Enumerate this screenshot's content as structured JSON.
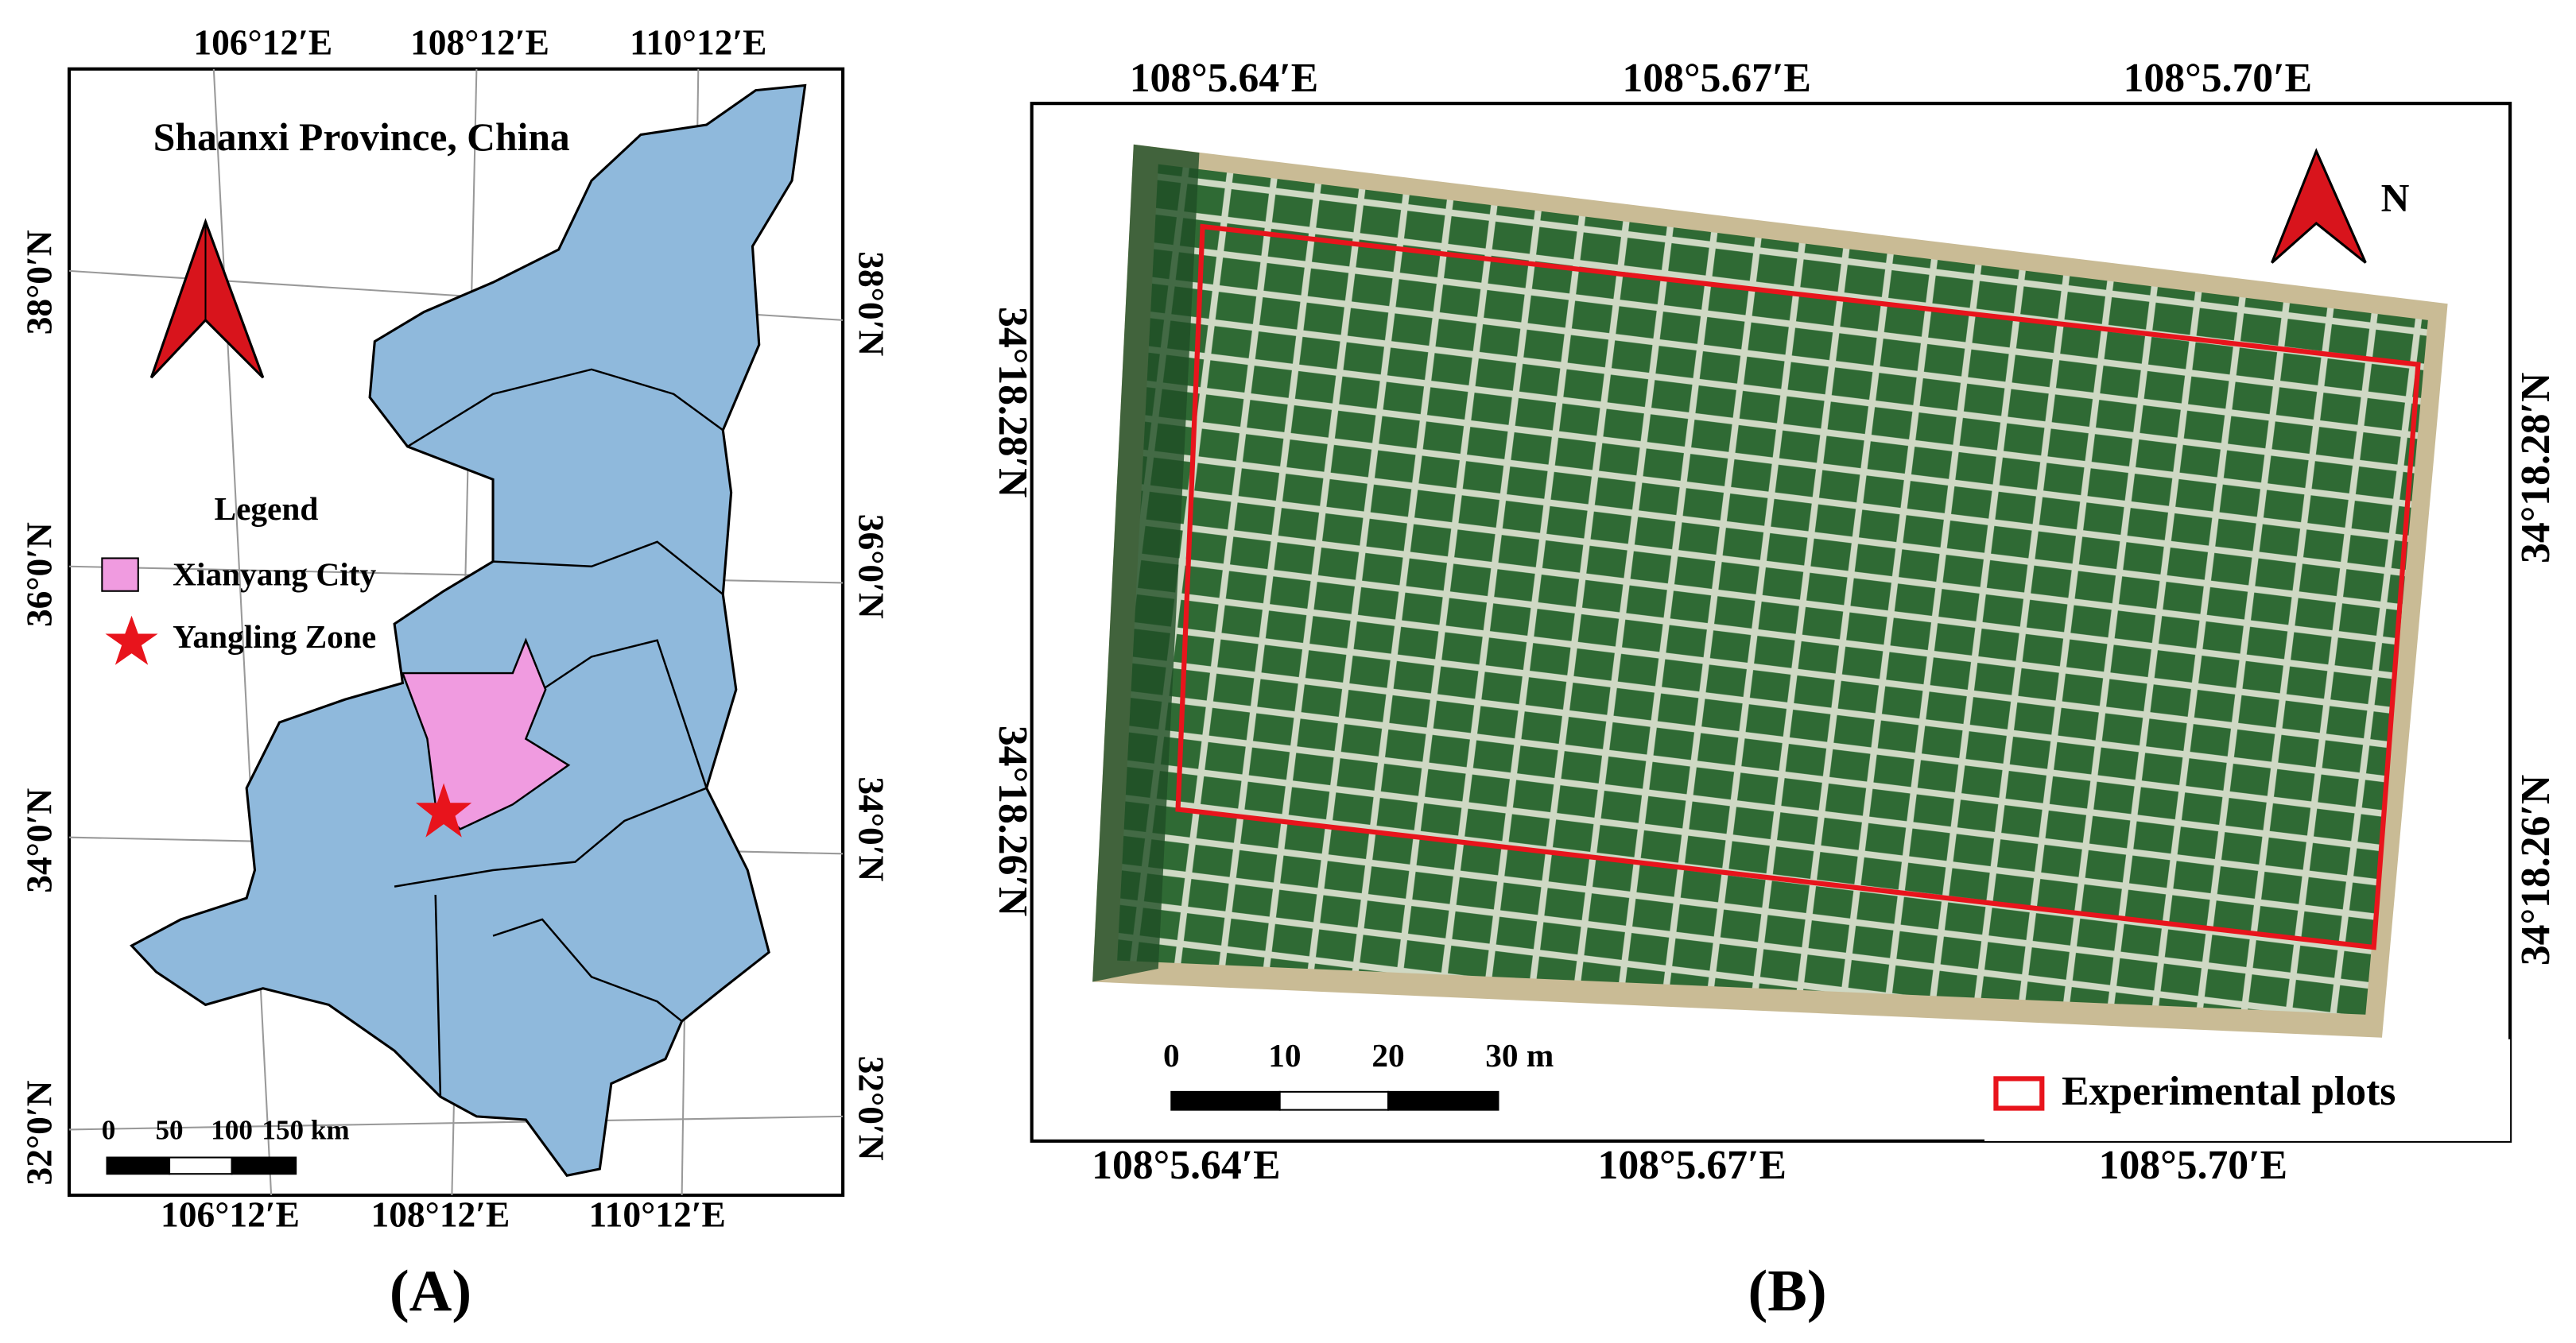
{
  "panel_a": {
    "title": "Shaanxi Province, China",
    "top_labels": [
      "106°12′E",
      "108°12′E",
      "110°12′E"
    ],
    "bottom_labels": [
      "106°12′E",
      "108°12′E",
      "110°12′E"
    ],
    "left_labels": [
      "38°0′N",
      "36°0′N",
      "34°0′N",
      "32°0′N"
    ],
    "right_labels": [
      "38°0′N",
      "36°0′N",
      "34°0′N",
      "32°0′N"
    ],
    "legend": {
      "title": "Legend",
      "items": [
        "Xianyang City",
        "Yangling Zone"
      ]
    },
    "scale_labels": [
      "0",
      "50",
      "100",
      "150 km"
    ],
    "caption": "(A)"
  },
  "panel_b": {
    "top_labels": [
      "108°5.64′E",
      "108°5.67′E",
      "108°5.70′E"
    ],
    "bottom_labels": [
      "108°5.64′E",
      "108°5.67′E",
      "108°5.70′E"
    ],
    "left_labels": [
      "34°18.28′N",
      "34°18.26′N"
    ],
    "right_labels": [
      "34°18.28′N",
      "34°18.26′N"
    ],
    "north": "N",
    "scale_labels": [
      "0",
      "10",
      "20",
      "30 m"
    ],
    "legend": "Experimental plots",
    "caption": "(B)"
  }
}
